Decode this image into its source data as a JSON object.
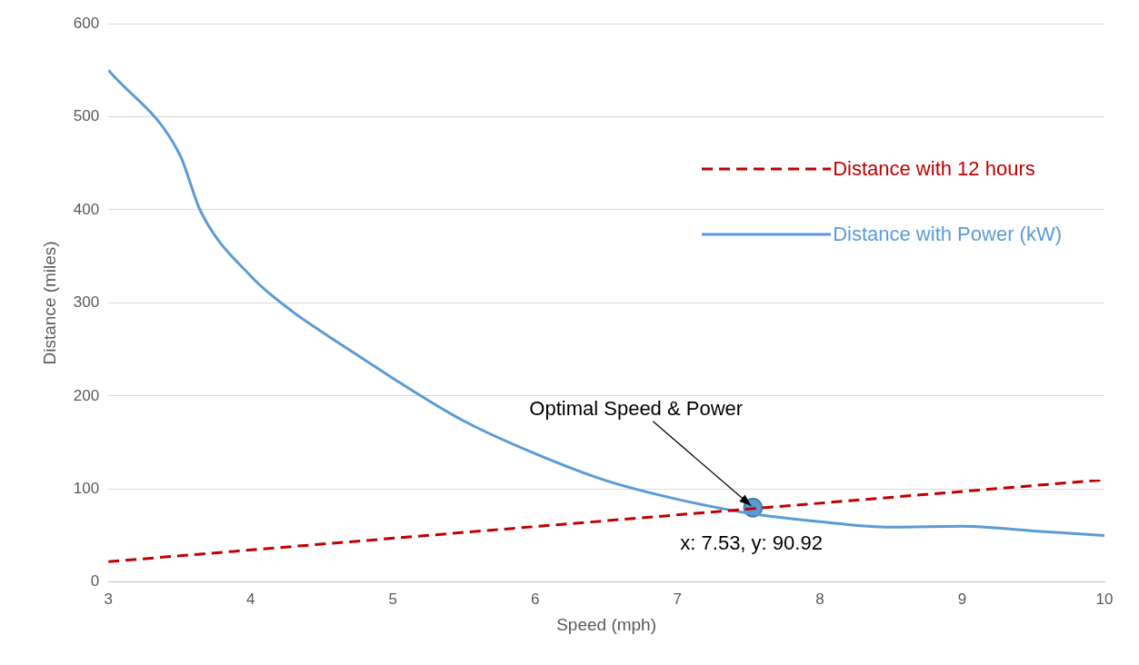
{
  "chart_data": {
    "type": "line",
    "xlabel": "Speed (mph)",
    "ylabel": "Distance (miles)",
    "xlim": [
      3,
      10
    ],
    "xticks": [
      3,
      4,
      5,
      6,
      7,
      8,
      9,
      10
    ],
    "ylim": [
      0,
      600
    ],
    "yticks": [
      0,
      100,
      200,
      300,
      400,
      500,
      600
    ],
    "grid": "y",
    "legend": "top right",
    "series": [
      {
        "name": "Distance with 12 hours",
        "color": "#c00000",
        "line_style": "dashed",
        "marker": "none",
        "x": [
          3,
          10
        ],
        "values": [
          22,
          110
        ]
      },
      {
        "name": "Distance with Power (kW)",
        "color": "#5b9bd5",
        "line_style": "solid",
        "marker": "none",
        "x": [
          3,
          3.5,
          3.65,
          4,
          4.3,
          4.5,
          4.8,
          5,
          5.5,
          6,
          6.5,
          7,
          7.5,
          8,
          8.5,
          9,
          9.5,
          10
        ],
        "values": [
          550,
          460,
          398,
          329,
          290,
          269,
          239,
          219,
          173,
          138,
          109,
          89,
          74,
          65,
          59,
          60,
          55,
          50
        ]
      },
      {
        "type": "scatter",
        "color": "#5b9bd5",
        "marker": "circle",
        "x": [
          7.53
        ],
        "values": [
          80
        ]
      }
    ],
    "annotations": [
      {
        "text": "Optimal Speed & Power",
        "x": 7.53,
        "y": 80
      },
      {
        "text": "x: 7.53, y: 90.92",
        "x": 7.53,
        "y": 80
      }
    ]
  }
}
